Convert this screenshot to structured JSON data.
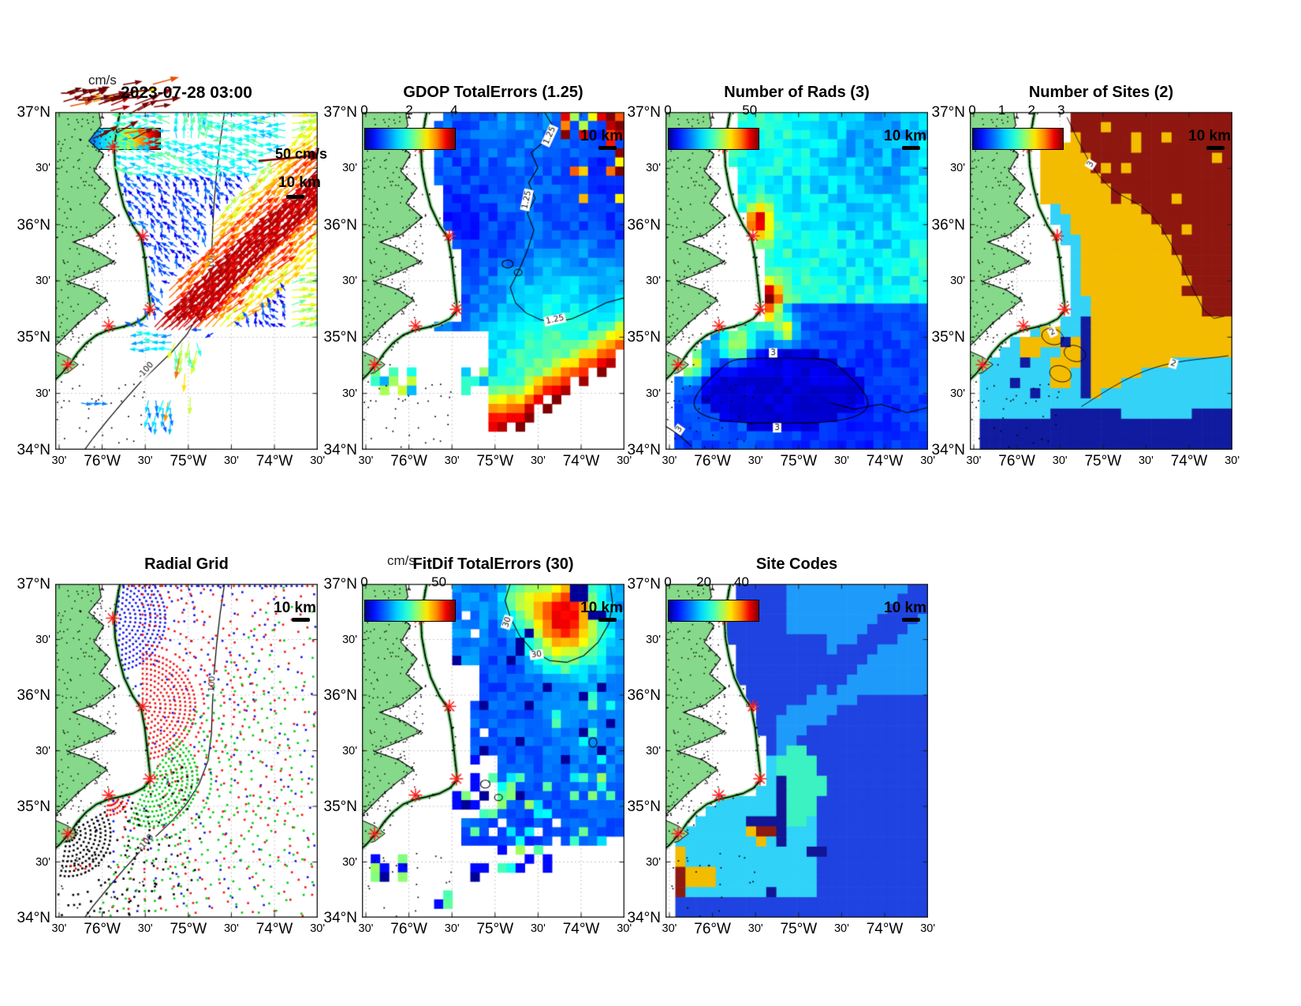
{
  "figure": {
    "background": "#ffffff"
  },
  "colors": {
    "land": "#86d98a",
    "ocean": "#ffffff",
    "coastline": "#000000",
    "site_marker": "#ff1a1a",
    "graticule": "#c9c9c9",
    "radial_blue": "#1414e6",
    "radial_red": "#f01414",
    "radial_green": "#00cc11",
    "radial_black": "#000000",
    "colormap": "jet"
  },
  "axes": {
    "x_ticks": [
      "30'",
      "76°W",
      "30'",
      "75°W",
      "30'",
      "74°W",
      "30'"
    ],
    "y_ticks": [
      "37°N",
      "30'",
      "36°N",
      "30'",
      "35°N",
      "30'",
      "34°N"
    ]
  },
  "panels": [
    {
      "id": "surface-currents",
      "title": "2023-07-28 03:00",
      "cbar_label": "cm/s",
      "colorbar_ticks": [],
      "scale_label": "10 km",
      "vector_legend": "50 cm/s",
      "contour_labels": [
        "-100",
        "100"
      ]
    },
    {
      "id": "gdop",
      "title": "GDOP TotalErrors (1.25)",
      "colorbar_ticks": [
        "0",
        "2",
        "4"
      ],
      "scale_label": "10 km",
      "contour_labels": [
        "1.25",
        "1.25",
        "1.25"
      ]
    },
    {
      "id": "num-rads",
      "title": "Number of Rads (3)",
      "colorbar_ticks": [
        "0",
        "50"
      ],
      "scale_label": "10 km",
      "contour_labels": [
        "3",
        "3",
        "3"
      ]
    },
    {
      "id": "num-sites",
      "title": "Number of Sites (2)",
      "colorbar_ticks": [
        "0",
        "1",
        "2",
        "3"
      ],
      "scale_label": "10 km",
      "contour_labels": [
        "2",
        "2",
        "3"
      ]
    },
    {
      "id": "radial-grid",
      "title": "Radial Grid",
      "colorbar_ticks": [],
      "scale_label": "10 km",
      "contour_labels": [
        "100",
        "-100"
      ]
    },
    {
      "id": "fitdif",
      "title": "FitDif TotalErrors (30)",
      "cbar_label": "cm/s",
      "colorbar_ticks": [
        "0",
        "50"
      ],
      "scale_label": "10 km",
      "contour_labels": [
        "30",
        "30"
      ]
    },
    {
      "id": "site-codes",
      "title": "Site Codes",
      "colorbar_ticks": [
        "0",
        "20",
        "40"
      ],
      "scale_label": "10 km",
      "contour_labels": []
    }
  ],
  "chart_data": [
    {
      "id": "surface_currents",
      "type": "quiver",
      "title": "2023-07-28 03:00",
      "units": "cm/s",
      "colorbar": {
        "label": "cm/s",
        "range": [
          0,
          50
        ]
      },
      "reference_vector": {
        "label": "50 cm/s",
        "value_cm_s": 50
      },
      "scale_bar_km": 10,
      "map_extent": {
        "west": "76°30'W",
        "east": "73°30'W",
        "south": "34°N",
        "north": "37°N"
      },
      "isobath_labels": [
        "-100",
        "100"
      ],
      "features": [
        "weak 5-15 cm/s west-to-southwest flow (dark blue arrows) over the shelf north of Cape Hatteras",
        "15-25 cm/s westward flow (cyan arrows) in the northern part of the domain",
        "dense 40-50 cm/s northeastward Gulf Stream jet (dark red arrows) offshore southeast of Cape Hatteras",
        "25-35 cm/s eastward flow (yellow/orange arrows) along the eastern edge",
        "scattered cyan/orange vectors south of the cape",
        "HF-radar sites marked by red asterisks along the Outer Banks"
      ]
    },
    {
      "id": "gdop_total_errors",
      "type": "heatmap",
      "title": "GDOP TotalErrors (1.25)",
      "colorbar": {
        "range": [
          0,
          4
        ],
        "ticks": [
          0,
          2,
          4
        ]
      },
      "contour_level": 1.25,
      "scale_bar_km": 10,
      "features": [
        "GDOP ~0.5-1.25 (dark blue) over most of the coverage",
        "values increase through cyan/green/yellow toward the offshore data edge",
        "~3.5-4 (red to dark red) along the southern boundary of coverage near 34°30'N",
        "1.25 contour winds through the middle and northeast of the domain",
        "no-data (white) region in the southwest corner with a few low-error patches"
      ]
    },
    {
      "id": "number_of_rads",
      "type": "heatmap",
      "title": "Number of Rads (3)",
      "colorbar": {
        "range": [
          0,
          50
        ],
        "ticks": [
          0,
          50
        ]
      },
      "contour_level": 3,
      "scale_bar_km": 10,
      "features": [
        "10-25 radials (blue-cyan) over most of the northern domain",
        "40-50 radials (orange-red hotspots) just offshore of two radar sites near the cape",
        "smaller maxima near the southwestern site",
        "fewer than ~3 radials (dark navy) inside the labeled 3 contour in the south"
      ]
    },
    {
      "id": "number_of_sites",
      "type": "heatmap",
      "title": "Number of Sites (2)",
      "colorbar": {
        "range": [
          0,
          3
        ],
        "ticks": [
          0,
          1,
          2,
          3
        ]
      },
      "scale_bar_km": 10,
      "features": [
        "3 sites (dark red) covering the northeastern offshore region",
        "2 sites (orange/gold) over the central area",
        "1 site (cyan) along the coast and over the southwest quadrant",
        "0 sites (dark navy) along the southern edge and in a band near 75°30'W",
        "black contour lines with labels 2 and 3 outline the site-count boundaries"
      ]
    },
    {
      "id": "radial_grid",
      "type": "scatter",
      "title": "Radial Grid",
      "scale_bar_km": 10,
      "isobath_labels": [
        "100",
        "-100"
      ],
      "series": [
        {
          "name": "northern site range-cell arcs",
          "color": "blue"
        },
        {
          "name": "central site range-cell arcs",
          "color": "red"
        },
        {
          "name": "southern site range-cell arcs",
          "color": "green"
        },
        {
          "name": "southwestern site range-cell arcs",
          "color": "black"
        }
      ],
      "features": [
        "concentric arcs of radial-grid points fan seaward from each red-asterisk radar site",
        "interleaved red/green/blue spokes of points extend across the whole offshore domain",
        "black arcs and scattered points near the southwestern site"
      ]
    },
    {
      "id": "fitdif_total_errors",
      "type": "heatmap",
      "title": "FitDif TotalErrors (30)",
      "units": "cm/s",
      "colorbar": {
        "label": "cm/s",
        "range": [
          0,
          50
        ],
        "ticks": [
          0,
          50
        ]
      },
      "contour_level": 30,
      "scale_bar_km": 10,
      "features": [
        "8-18 cm/s (blue) over most of the coverage area",
        "cluster exceeding 30 cm/s (orange-red) in the far northeast inside the 30 contour",
        "scattered yellow-green cells of 20-30 cm/s near the southern data edge",
        "a few isolated dark navy cells and detached patches in the southwest"
      ]
    },
    {
      "id": "site_codes",
      "type": "heatmap",
      "title": "Site Codes",
      "colorbar": {
        "range": [
          0,
          40
        ],
        "ticks": [
          0,
          20,
          40
        ]
      },
      "scale_bar_km": 10,
      "features": [
        "discrete site-code combinations shown as flat colored regions",
        "two shades of blue cover the offshore area",
        "cyan and aquamarine regions near the coast south of the cape",
        "small gold and dark red patches beside the southwestern sites and in the bottom-left corner",
        "dark navy streaks cut through the cyan region"
      ]
    }
  ]
}
